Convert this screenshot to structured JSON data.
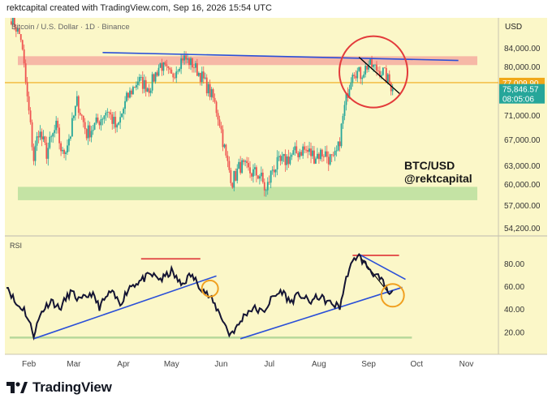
{
  "header": {
    "caption": "rektcapital created with TradingView.com, Sep 16, 2026 15:54 UTC"
  },
  "footer": {
    "brand": "TradingView"
  },
  "colors": {
    "background": "#fbf7c8",
    "up": "#26a69a",
    "down": "#ef5350",
    "resistance_zone": "#f6b8a6",
    "support_zone": "#c4e3a4",
    "trendline": "#2a4fd8",
    "current_line": "#f0a818",
    "circle": "#e33b3b",
    "rsi_line": "#141433",
    "orange_circle": "#f0a020"
  },
  "chart_data": [
    {
      "type": "candlestick",
      "title": "Bitcoin / U.S. Dollar · 1D · Binance",
      "currency": "USD",
      "watermark": [
        "BTC/USD",
        "@rektcapital"
      ],
      "y_ticks": [
        84000,
        80000,
        71000,
        67000,
        63000,
        60000,
        57000,
        54200
      ],
      "y_tick_labels": [
        "84,000.00",
        "80,000.00",
        "71,000.00",
        "67,000.00",
        "63,000.00",
        "60,000.00",
        "57,000.00",
        "54,200.00"
      ],
      "x_ticks": [
        "Feb",
        "Mar",
        "Apr",
        "May",
        "Jun",
        "Jul",
        "Aug",
        "Sep",
        "Oct",
        "Nov"
      ],
      "price_labels": [
        {
          "value": 77009.9,
          "label": "77,009.90",
          "color": "#f0a818"
        },
        {
          "value": 75846.57,
          "label": "75,846.57",
          "sublabel": "08:05:06",
          "color": "#26a69a"
        }
      ],
      "zones": [
        {
          "name": "resistance",
          "from": 80300,
          "to": 82200
        },
        {
          "name": "support",
          "from": 57700,
          "to": 59600
        }
      ],
      "trendlines": [
        {
          "from": [
            "2026-03-19",
            83000
          ],
          "to": [
            "2026-10-27",
            81300
          ]
        },
        {
          "from": [
            "2026-08-26",
            82000
          ],
          "to": [
            "2026-09-21",
            74800
          ],
          "color": "#000000"
        }
      ],
      "path": [
        [
          "2026-01-21",
          90000
        ],
        [
          "2026-01-27",
          86000
        ],
        [
          "2026-01-31",
          74000
        ],
        [
          "2026-02-04",
          64000
        ],
        [
          "2026-02-07",
          68500
        ],
        [
          "2026-02-12",
          65000
        ],
        [
          "2026-02-18",
          69000
        ],
        [
          "2026-02-22",
          64500
        ],
        [
          "2026-02-27",
          68000
        ],
        [
          "2026-03-03",
          73500
        ],
        [
          "2026-03-09",
          68000
        ],
        [
          "2026-03-15",
          69500
        ],
        [
          "2026-03-22",
          72000
        ],
        [
          "2026-03-28",
          68500
        ],
        [
          "2026-04-03",
          74000
        ],
        [
          "2026-04-10",
          77500
        ],
        [
          "2026-04-17",
          76000
        ],
        [
          "2026-04-24",
          80500
        ],
        [
          "2026-05-01",
          78000
        ],
        [
          "2026-05-08",
          82000
        ],
        [
          "2026-05-14",
          80500
        ],
        [
          "2026-05-20",
          78000
        ],
        [
          "2026-05-27",
          74000
        ],
        [
          "2026-05-31",
          70000
        ],
        [
          "2026-06-04",
          64000
        ],
        [
          "2026-06-08",
          60500
        ],
        [
          "2026-06-13",
          63000
        ],
        [
          "2026-06-18",
          62000
        ],
        [
          "2026-06-25",
          61500
        ],
        [
          "2026-06-29",
          58800
        ],
        [
          "2026-07-03",
          62500
        ],
        [
          "2026-07-09",
          63500
        ],
        [
          "2026-07-15",
          64500
        ],
        [
          "2026-07-22",
          65500
        ],
        [
          "2026-07-29",
          64500
        ],
        [
          "2026-08-04",
          65000
        ],
        [
          "2026-08-10",
          63500
        ],
        [
          "2026-08-13",
          65500
        ],
        [
          "2026-08-18",
          74000
        ],
        [
          "2026-08-22",
          79500
        ],
        [
          "2026-08-27",
          78500
        ],
        [
          "2026-09-01",
          80500
        ],
        [
          "2026-09-06",
          79500
        ],
        [
          "2026-09-10",
          79000
        ],
        [
          "2026-09-16",
          75900
        ]
      ]
    },
    {
      "type": "line",
      "title": "RSI",
      "y_ticks": [
        80,
        60,
        40,
        20
      ],
      "y_tick_labels": [
        "80.00",
        "60.00",
        "40.00",
        "20.00"
      ],
      "hlines": [
        {
          "value": 84,
          "from": "2026-04-12",
          "to": "2026-05-19"
        },
        {
          "value": 87,
          "from": "2026-08-22",
          "to": "2026-09-20"
        },
        {
          "value": 15,
          "from": "2026-01-20",
          "to": "2026-09-28"
        }
      ],
      "trendlines": [
        {
          "from": [
            "2026-02-04",
            14
          ],
          "to": [
            "2026-05-29",
            69
          ]
        },
        {
          "from": [
            "2026-06-13",
            14
          ],
          "to": [
            "2026-09-22",
            59
          ]
        },
        {
          "from": [
            "2026-08-26",
            88
          ],
          "to": [
            "2026-09-24",
            66
          ]
        },
        {
          "from": [
            "2026-08-27",
            85
          ],
          "to": [
            "2026-09-13",
            55
          ]
        }
      ],
      "points": [
        [
          "2026-01-18",
          62
        ],
        [
          "2026-01-24",
          44
        ],
        [
          "2026-01-29",
          40
        ],
        [
          "2026-02-04",
          18
        ],
        [
          "2026-02-09",
          38
        ],
        [
          "2026-02-15",
          48
        ],
        [
          "2026-02-20",
          40
        ],
        [
          "2026-02-27",
          55
        ],
        [
          "2026-03-05",
          47
        ],
        [
          "2026-03-12",
          54
        ],
        [
          "2026-03-17",
          42
        ],
        [
          "2026-03-24",
          55
        ],
        [
          "2026-03-30",
          45
        ],
        [
          "2026-04-05",
          60
        ],
        [
          "2026-04-12",
          65
        ],
        [
          "2026-04-18",
          70
        ],
        [
          "2026-04-25",
          66
        ],
        [
          "2026-05-01",
          73
        ],
        [
          "2026-05-07",
          61
        ],
        [
          "2026-05-13",
          70
        ],
        [
          "2026-05-19",
          60
        ],
        [
          "2026-05-26",
          48
        ],
        [
          "2026-06-01",
          34
        ],
        [
          "2026-06-06",
          18
        ],
        [
          "2026-06-11",
          24
        ],
        [
          "2026-06-16",
          36
        ],
        [
          "2026-06-21",
          41
        ],
        [
          "2026-06-27",
          37
        ],
        [
          "2026-07-03",
          50
        ],
        [
          "2026-07-09",
          56
        ],
        [
          "2026-07-14",
          46
        ],
        [
          "2026-07-20",
          53
        ],
        [
          "2026-07-26",
          46
        ],
        [
          "2026-08-01",
          51
        ],
        [
          "2026-08-08",
          45
        ],
        [
          "2026-08-14",
          42
        ],
        [
          "2026-08-19",
          72
        ],
        [
          "2026-08-25",
          88
        ],
        [
          "2026-08-30",
          79
        ],
        [
          "2026-09-05",
          70
        ],
        [
          "2026-09-10",
          63
        ],
        [
          "2026-09-14",
          52
        ],
        [
          "2026-09-16",
          54
        ]
      ]
    }
  ]
}
